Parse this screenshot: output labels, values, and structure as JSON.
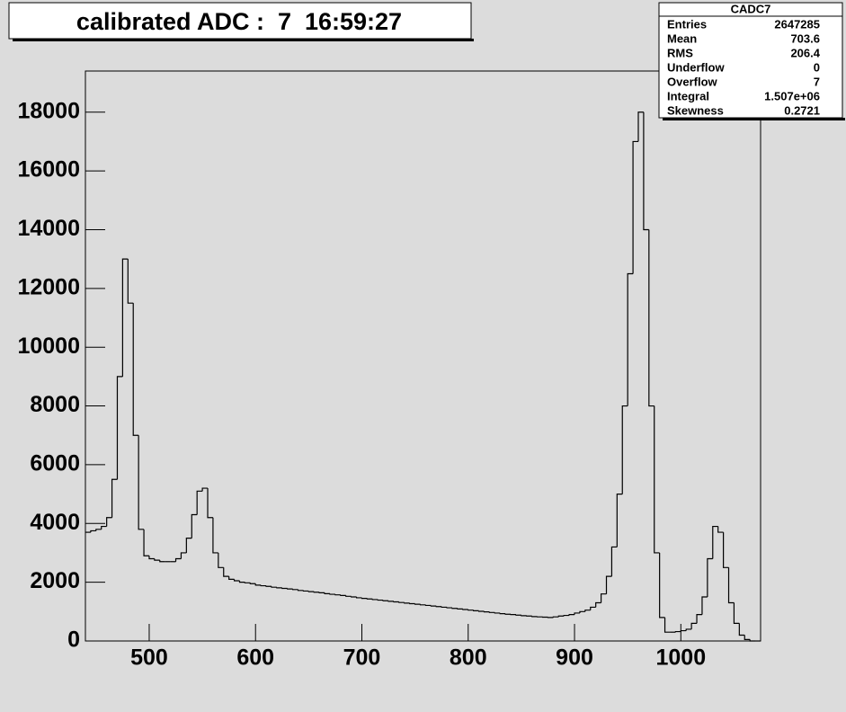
{
  "chart_data": {
    "type": "histogram",
    "title": "calibrated ADC :  7  16:59:27",
    "color": "#000000",
    "bins": [
      440,
      445,
      450,
      455,
      460,
      465,
      470,
      475,
      480,
      485,
      490,
      495,
      500,
      505,
      510,
      515,
      520,
      525,
      530,
      535,
      540,
      545,
      550,
      555,
      560,
      565,
      570,
      575,
      580,
      585,
      590,
      595,
      600,
      605,
      610,
      615,
      620,
      625,
      630,
      635,
      640,
      645,
      650,
      655,
      660,
      665,
      670,
      675,
      680,
      685,
      690,
      695,
      700,
      705,
      710,
      715,
      720,
      725,
      730,
      735,
      740,
      745,
      750,
      755,
      760,
      765,
      770,
      775,
      780,
      785,
      790,
      795,
      800,
      805,
      810,
      815,
      820,
      825,
      830,
      835,
      840,
      845,
      850,
      855,
      860,
      865,
      870,
      875,
      880,
      885,
      890,
      895,
      900,
      905,
      910,
      915,
      920,
      925,
      930,
      935,
      940,
      945,
      950,
      955,
      960,
      965,
      970,
      975,
      980,
      985,
      990,
      995,
      1000,
      1005,
      1010,
      1015,
      1020,
      1025,
      1030,
      1035,
      1040,
      1045,
      1050,
      1055,
      1060,
      1065,
      1070,
      1075
    ],
    "values": [
      3700,
      3750,
      3800,
      3900,
      4200,
      5500,
      9000,
      13000,
      11500,
      7000,
      3800,
      2900,
      2800,
      2750,
      2700,
      2700,
      2700,
      2800,
      3000,
      3500,
      4300,
      5100,
      5200,
      4200,
      3000,
      2500,
      2200,
      2100,
      2050,
      2000,
      1980,
      1950,
      1900,
      1880,
      1860,
      1830,
      1810,
      1790,
      1770,
      1750,
      1720,
      1700,
      1680,
      1660,
      1640,
      1610,
      1590,
      1570,
      1550,
      1520,
      1500,
      1470,
      1450,
      1430,
      1410,
      1390,
      1370,
      1350,
      1330,
      1310,
      1290,
      1270,
      1250,
      1230,
      1210,
      1190,
      1170,
      1150,
      1130,
      1110,
      1090,
      1070,
      1050,
      1030,
      1010,
      990,
      970,
      950,
      930,
      910,
      900,
      880,
      860,
      850,
      830,
      820,
      810,
      800,
      820,
      850,
      870,
      900,
      950,
      1000,
      1050,
      1150,
      1300,
      1600,
      2200,
      3200,
      5000,
      8000,
      12500,
      17000,
      18000,
      14000,
      8000,
      3000,
      800,
      300,
      300,
      320,
      350,
      400,
      600,
      900,
      1500,
      2800,
      3900,
      3700,
      2500,
      1300,
      600,
      200,
      50,
      0,
      0
    ],
    "xlim": [
      440,
      1075
    ],
    "ylim": [
      0,
      19400
    ],
    "xticks": [
      500,
      600,
      700,
      800,
      900,
      1000
    ],
    "yticks": [
      0,
      2000,
      4000,
      6000,
      8000,
      10000,
      12000,
      14000,
      16000,
      18000
    ],
    "stats": {
      "title": "CADC7",
      "rows": [
        [
          "Entries",
          "2647285"
        ],
        [
          "Mean",
          "703.6"
        ],
        [
          "RMS",
          "206.4"
        ],
        [
          "Underflow",
          "0"
        ],
        [
          "Overflow",
          "7"
        ],
        [
          "Integral",
          "1.507e+06"
        ],
        [
          "Skewness",
          "0.2721"
        ]
      ]
    }
  }
}
